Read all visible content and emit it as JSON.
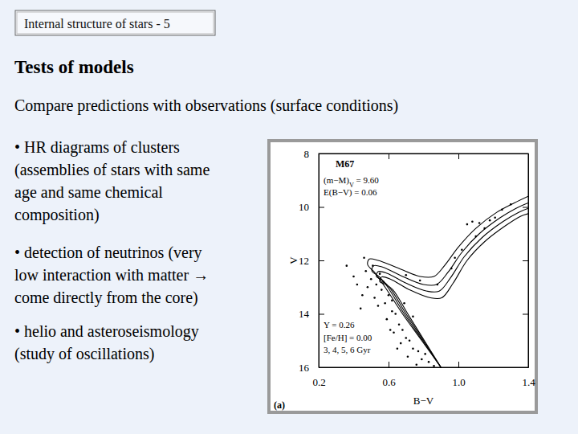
{
  "header": "Internal structure of stars - 5",
  "title": "Tests of models",
  "subtitle": "Compare predictions with observations (surface conditions)",
  "bullets": [
    [
      "• HR diagrams of clusters",
      "(assemblies of stars with same",
      "age and same chemical",
      "composition)"
    ],
    [
      "• detection of neutrinos (very",
      "low interaction with matter →",
      "come directly from the core)"
    ],
    [
      "• helio and asteroseismology",
      "(study of oscillations)"
    ]
  ],
  "chart_data": {
    "type": "scatter",
    "x_label": "B−V",
    "y_label": "V",
    "xlim": [
      0.2,
      1.4
    ],
    "ylim": [
      16,
      8
    ],
    "xticks": [
      0.2,
      0.6,
      {
        "value": 1,
        "label": "1.0"
      },
      1.4
    ],
    "yticks": [
      8,
      10,
      12,
      14,
      16
    ],
    "annotations": [
      "M67",
      [
        "(m−M)",
        "V",
        " = 9.60"
      ],
      "E(B−V) = 0.06",
      "Y = 0.26",
      "[Fe/H] = 0.00",
      "3, 4, 5, 6 Gyr",
      "(a)"
    ],
    "series": [
      {
        "type": "line",
        "color": "#000000",
        "x": [
          0.9,
          0.79,
          0.68,
          0.58,
          0.52,
          0.48,
          0.49,
          0.54,
          0.66,
          0.78,
          0.86,
          0.92,
          1.0,
          1.1,
          1.22,
          1.32,
          1.4
        ],
        "values": [
          16,
          15,
          14,
          13,
          12.45,
          12.15,
          11.95,
          12.0,
          12.3,
          12.6,
          12.6,
          12.2,
          11.5,
          10.8,
          10.2,
          9.85,
          9.6
        ]
      },
      {
        "type": "line",
        "color": "#000000",
        "x": [
          0.9,
          0.795,
          0.69,
          0.595,
          0.545,
          0.505,
          0.515,
          0.565,
          0.68,
          0.8,
          0.875,
          0.94,
          1.02,
          1.12,
          1.24,
          1.33,
          1.4
        ],
        "values": [
          16,
          15,
          14,
          13,
          12.6,
          12.4,
          12.2,
          12.25,
          12.6,
          12.9,
          12.9,
          12.45,
          11.7,
          11.0,
          10.4,
          10.05,
          9.85
        ]
      },
      {
        "type": "line",
        "color": "#000000",
        "x": [
          0.9,
          0.8,
          0.7,
          0.61,
          0.565,
          0.53,
          0.54,
          0.59,
          0.7,
          0.82,
          0.89,
          0.955,
          1.035,
          1.135,
          1.255,
          1.345,
          1.4
        ],
        "values": [
          16,
          15,
          14,
          13.05,
          12.75,
          12.6,
          12.42,
          12.48,
          12.85,
          13.15,
          13.15,
          12.65,
          11.85,
          11.15,
          10.55,
          10.2,
          10.05
        ]
      },
      {
        "type": "line",
        "color": "#000000",
        "x": [
          0.9,
          0.805,
          0.71,
          0.625,
          0.585,
          0.55,
          0.56,
          0.61,
          0.72,
          0.84,
          0.905,
          0.97,
          1.05,
          1.15,
          1.27,
          1.355,
          1.4
        ],
        "values": [
          16,
          15,
          14,
          13.1,
          12.9,
          12.8,
          12.62,
          12.7,
          13.1,
          13.4,
          13.4,
          12.85,
          12.0,
          11.3,
          10.7,
          10.35,
          10.25
        ]
      },
      {
        "type": "scatter",
        "color": "#000000",
        "marker": "dot",
        "x": [
          0.42,
          0.45,
          0.4,
          0.47,
          0.44,
          0.5,
          0.53,
          0.56,
          0.52,
          0.58,
          0.6,
          0.55,
          0.62,
          0.59,
          0.64,
          0.66,
          0.63,
          0.68,
          0.7,
          0.67,
          0.72,
          0.74,
          0.71,
          0.77,
          0.79,
          0.76,
          0.81,
          0.83,
          0.86,
          0.62,
          0.57,
          0.48,
          0.51,
          0.46,
          0.7,
          0.78,
          0.88,
          0.96,
          1.02,
          1.1,
          1.12,
          1.15,
          1.18,
          1.21,
          1.08,
          1.05,
          1.25,
          1.3,
          0.98,
          0.36,
          0.69,
          0.74,
          0.54,
          0.61,
          0.65
        ],
        "values": [
          12.9,
          13.3,
          12.6,
          12.4,
          13.8,
          12.7,
          12.9,
          13.1,
          13.4,
          13.6,
          13.3,
          12.5,
          13.9,
          14.2,
          14.0,
          14.4,
          14.7,
          14.6,
          14.9,
          15.1,
          15.0,
          15.3,
          15.6,
          15.4,
          15.7,
          15.9,
          15.5,
          15.8,
          15.95,
          13.5,
          12.8,
          13.0,
          12.2,
          11.9,
          12.55,
          12.75,
          12.9,
          12.3,
          11.6,
          11.1,
          10.6,
          10.8,
          10.5,
          10.4,
          10.55,
          10.65,
          10.1,
          9.9,
          11.9,
          12.2,
          13.6,
          14.1,
          13.7,
          14.6,
          15.3
        ]
      }
    ]
  }
}
